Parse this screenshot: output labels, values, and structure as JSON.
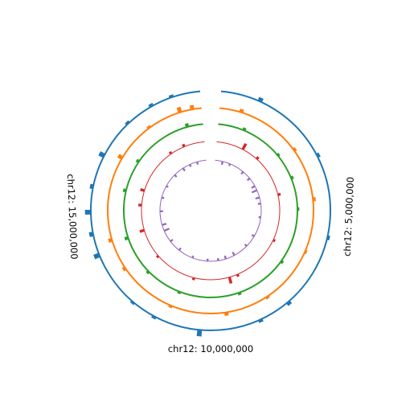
{
  "chart_data": {
    "type": "circular-genome-tracks",
    "title": "",
    "chromosome": "chr12",
    "region": [
      0,
      20000000
    ],
    "gap_degrees": 10,
    "tick_labels": [
      {
        "position": 5000000,
        "text": "chr12: 5,000,000"
      },
      {
        "position": 10000000,
        "text": "chr12: 10,000,000"
      },
      {
        "position": 15000000,
        "text": "chr12: 15,000,000"
      }
    ],
    "tracks": [
      {
        "order": 1,
        "color": "#1f77b4",
        "orientation": "outward",
        "peaks": [
          [
            1100000,
            0.55
          ],
          [
            3300000,
            0.35
          ],
          [
            5600000,
            0.3
          ],
          [
            7700000,
            0.45
          ],
          [
            8600000,
            0.35
          ],
          [
            10300000,
            1.0
          ],
          [
            11600000,
            0.3
          ],
          [
            12300000,
            0.25
          ],
          [
            13900000,
            0.85
          ],
          [
            14500000,
            0.55
          ],
          [
            15100000,
            0.9
          ],
          [
            15800000,
            0.45
          ],
          [
            16700000,
            0.8
          ],
          [
            17800000,
            0.3
          ],
          [
            18600000,
            0.35
          ],
          [
            19200000,
            0.3
          ]
        ]
      },
      {
        "order": 2,
        "color": "#ff7f0e",
        "orientation": "outward",
        "peaks": [
          [
            700000,
            0.45
          ],
          [
            2800000,
            0.3
          ],
          [
            4500000,
            0.35
          ],
          [
            6200000,
            0.2
          ],
          [
            8100000,
            0.25
          ],
          [
            9500000,
            0.45
          ],
          [
            11300000,
            0.25
          ],
          [
            13200000,
            0.35
          ],
          [
            14200000,
            0.5
          ],
          [
            16900000,
            0.65
          ],
          [
            18200000,
            0.25
          ],
          [
            19300000,
            0.8
          ],
          [
            19700000,
            0.6
          ]
        ]
      },
      {
        "order": 3,
        "color": "#2ca02c",
        "orientation": "outward",
        "peaks": [
          [
            1000000,
            0.35
          ],
          [
            2600000,
            0.25
          ],
          [
            3600000,
            0.3
          ],
          [
            4800000,
            0.2
          ],
          [
            6900000,
            0.3
          ],
          [
            8900000,
            0.3
          ],
          [
            11200000,
            0.25
          ],
          [
            12600000,
            0.3
          ],
          [
            14100000,
            0.5
          ],
          [
            15900000,
            0.4
          ],
          [
            17100000,
            0.35
          ],
          [
            19400000,
            0.5
          ]
        ]
      },
      {
        "order": 4,
        "color": "#d62728",
        "orientation": "outward",
        "peaks": [
          [
            1300000,
            1.0
          ],
          [
            2100000,
            0.35
          ],
          [
            4100000,
            0.35
          ],
          [
            6300000,
            0.25
          ],
          [
            8700000,
            0.3
          ],
          [
            9100000,
            1.0
          ],
          [
            10800000,
            0.3
          ],
          [
            12800000,
            0.25
          ],
          [
            14200000,
            0.7
          ],
          [
            15400000,
            0.45
          ],
          [
            16100000,
            0.6
          ],
          [
            18300000,
            0.3
          ],
          [
            19000000,
            0.35
          ]
        ]
      },
      {
        "order": 5,
        "color": "#9467bd",
        "orientation": "inward",
        "peaks": [
          [
            500000,
            0.45
          ],
          [
            1000000,
            0.25
          ],
          [
            2000000,
            0.35
          ],
          [
            2600000,
            0.4
          ],
          [
            3200000,
            0.55
          ],
          [
            3500000,
            0.85
          ],
          [
            4000000,
            0.6
          ],
          [
            4400000,
            0.35
          ],
          [
            5300000,
            0.25
          ],
          [
            6600000,
            0.35
          ],
          [
            7400000,
            0.3
          ],
          [
            8400000,
            0.5
          ],
          [
            9000000,
            0.45
          ],
          [
            9500000,
            0.3
          ],
          [
            10200000,
            0.3
          ],
          [
            11200000,
            0.25
          ],
          [
            12200000,
            0.35
          ],
          [
            13000000,
            0.4
          ],
          [
            13800000,
            0.85
          ],
          [
            14200000,
            0.65
          ],
          [
            15100000,
            0.4
          ],
          [
            16000000,
            0.3
          ],
          [
            16800000,
            0.25
          ],
          [
            17700000,
            0.35
          ],
          [
            18400000,
            0.45
          ],
          [
            18900000,
            0.3
          ],
          [
            19400000,
            0.35
          ]
        ]
      }
    ]
  }
}
